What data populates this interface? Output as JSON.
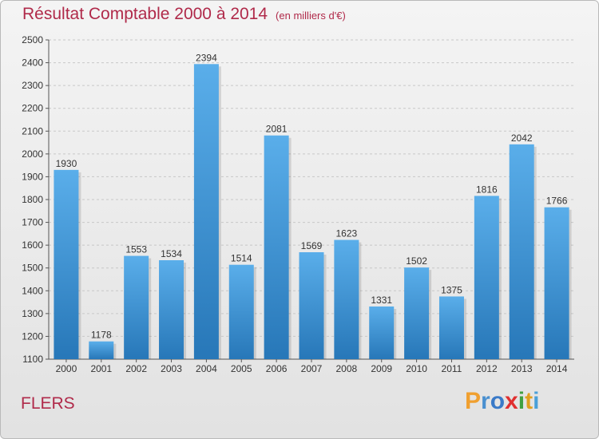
{
  "header": {
    "title": "Résultat Comptable 2000 à 2014",
    "subtitle": "(en milliers d'€)"
  },
  "footer": {
    "city": "FLERS",
    "logo_letters": [
      "P",
      "r",
      "o",
      "x",
      "i",
      "t",
      "i"
    ],
    "logo_colors": [
      "#f0a030",
      "#4a90d0",
      "#3a7ac8",
      "#e03030",
      "#40a040",
      "#e0a020",
      "#4aa0d8"
    ]
  },
  "colors": {
    "bar_top": "#5aaeea",
    "bar_bottom": "#2777b8",
    "title": "#b02a4a"
  },
  "chart_data": {
    "type": "bar",
    "categories": [
      "2000",
      "2001",
      "2002",
      "2003",
      "2004",
      "2005",
      "2006",
      "2007",
      "2008",
      "2009",
      "2010",
      "2011",
      "2012",
      "2013",
      "2014"
    ],
    "values": [
      1930,
      1178,
      1553,
      1534,
      2394,
      1514,
      2081,
      1569,
      1623,
      1331,
      1502,
      1375,
      1816,
      2042,
      1766
    ],
    "ylim": [
      1100,
      2500
    ],
    "yticks": [
      1100,
      1200,
      1300,
      1400,
      1500,
      1600,
      1700,
      1800,
      1900,
      2000,
      2100,
      2200,
      2300,
      2400,
      2500
    ],
    "grid": true
  }
}
